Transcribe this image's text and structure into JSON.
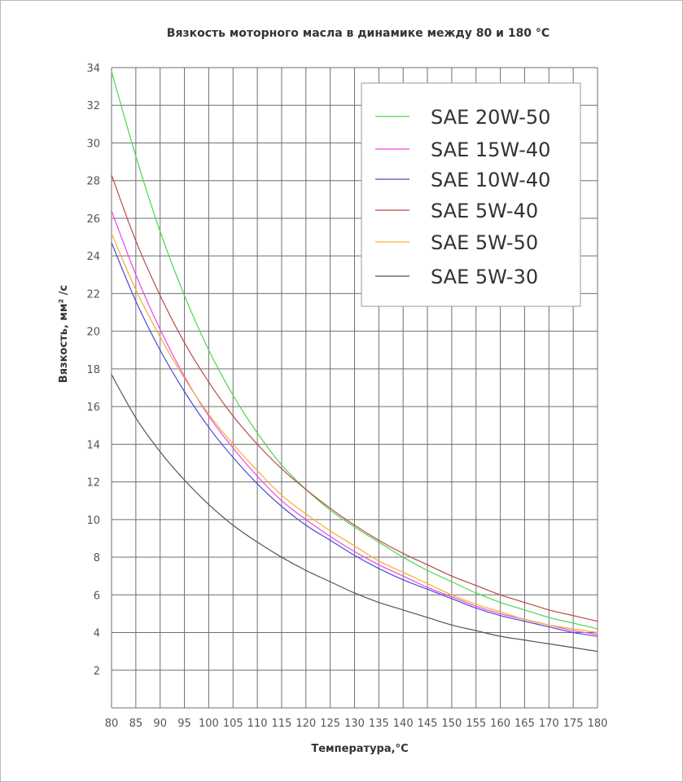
{
  "chart_data": {
    "type": "line",
    "title": "Вязкость моторного масла в динамике между 80 и 180 °С",
    "xlabel": "Температура,°С",
    "ylabel": "Вязкость,  мм² /с",
    "xlim": [
      80,
      180
    ],
    "ylim": [
      0,
      34
    ],
    "x_ticks": [
      80,
      85,
      90,
      95,
      100,
      105,
      110,
      115,
      120,
      125,
      130,
      135,
      140,
      145,
      150,
      155,
      160,
      165,
      170,
      175,
      180
    ],
    "y_ticks": [
      2,
      4,
      6,
      8,
      10,
      12,
      14,
      16,
      18,
      20,
      22,
      24,
      26,
      28,
      30,
      32,
      34
    ],
    "grid": true,
    "legend_position": "top-right",
    "x": [
      80,
      85,
      90,
      95,
      100,
      105,
      110,
      115,
      120,
      125,
      130,
      135,
      140,
      145,
      150,
      155,
      160,
      165,
      170,
      175,
      180
    ],
    "series": [
      {
        "name": "SAE 20W-50",
        "color": "#4cd64c",
        "values": [
          33.8,
          29.3,
          25.3,
          21.9,
          19.0,
          16.6,
          14.6,
          12.9,
          11.6,
          10.5,
          9.6,
          8.8,
          8.0,
          7.3,
          6.7,
          6.1,
          5.6,
          5.2,
          4.8,
          4.5,
          4.2
        ]
      },
      {
        "name": "SAE 15W-40",
        "color": "#f044e8",
        "values": [
          26.4,
          23.0,
          20.1,
          17.6,
          15.5,
          13.8,
          12.3,
          11.0,
          10.0,
          9.1,
          8.3,
          7.6,
          7.0,
          6.4,
          5.9,
          5.4,
          5.0,
          4.7,
          4.4,
          4.1,
          3.9
        ]
      },
      {
        "name": "SAE 10W-40",
        "color": "#4a4ad6",
        "values": [
          24.7,
          21.6,
          19.0,
          16.8,
          14.9,
          13.3,
          11.9,
          10.7,
          9.7,
          8.9,
          8.1,
          7.4,
          6.8,
          6.3,
          5.8,
          5.3,
          4.9,
          4.6,
          4.3,
          4.0,
          3.8
        ]
      },
      {
        "name": "SAE 5W-40",
        "color": "#b84a4a",
        "values": [
          28.3,
          24.8,
          21.9,
          19.4,
          17.3,
          15.5,
          14.0,
          12.7,
          11.6,
          10.6,
          9.7,
          8.9,
          8.2,
          7.6,
          7.0,
          6.5,
          6.0,
          5.6,
          5.2,
          4.9,
          4.6
        ]
      },
      {
        "name": "SAE 5W-50",
        "color": "#f0b030",
        "values": [
          25.2,
          22.2,
          19.7,
          17.5,
          15.6,
          14.0,
          12.6,
          11.3,
          10.3,
          9.4,
          8.6,
          7.8,
          7.2,
          6.6,
          6.0,
          5.5,
          5.1,
          4.7,
          4.4,
          4.2,
          4.0
        ]
      },
      {
        "name": "SAE 5W-30",
        "color": "#555555",
        "values": [
          17.7,
          15.4,
          13.6,
          12.1,
          10.8,
          9.7,
          8.8,
          8.0,
          7.3,
          6.7,
          6.1,
          5.6,
          5.2,
          4.8,
          4.4,
          4.1,
          3.8,
          3.6,
          3.4,
          3.2,
          3.0
        ]
      }
    ]
  }
}
